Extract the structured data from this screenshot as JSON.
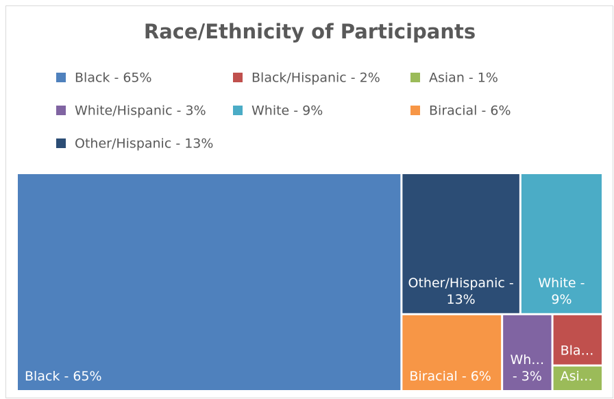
{
  "chart_data": {
    "type": "treemap",
    "title": "Race/Ethnicity of Participants",
    "categories": [
      "Black - 65%",
      "Black/Hispanic - 2%",
      "Asian - 1%",
      "White/Hispanic - 3%",
      "White - 9%",
      "Biracial - 6%",
      "Other/Hispanic - 13%"
    ],
    "values": [
      65,
      2,
      1,
      3,
      9,
      6,
      13
    ],
    "colors": [
      "#4f81bd",
      "#c0504d",
      "#9bbb59",
      "#8064a2",
      "#4bacc6",
      "#f79646",
      "#2c4d75"
    ],
    "legend": "top"
  }
}
